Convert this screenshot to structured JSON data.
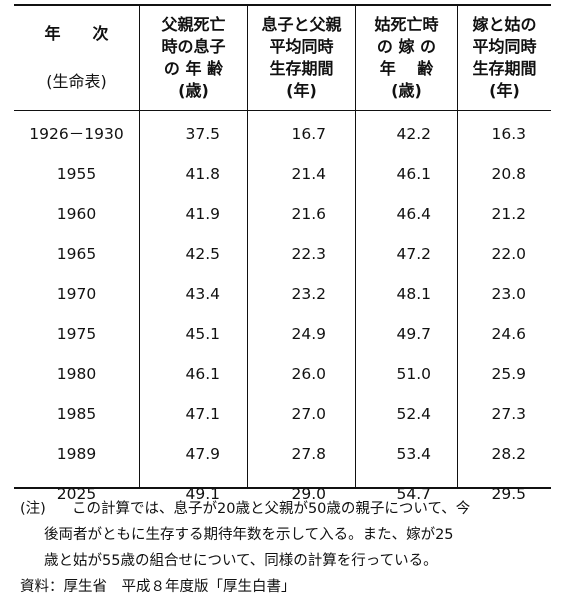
{
  "table": {
    "header": {
      "year_col": [
        "年　　次",
        "(生命表)"
      ],
      "col1": [
        "父親死亡",
        "時の息子",
        "の 年 齢",
        "(歳)"
      ],
      "col2": [
        "息子と父親",
        "平均同時",
        "生存期間",
        "(年)"
      ],
      "col3": [
        "姑死亡時",
        "の 嫁 の",
        "年　 齢",
        "(歳)"
      ],
      "col4": [
        "嫁と姑の",
        "平均同時",
        "生存期間",
        "(年)"
      ]
    },
    "rows": [
      {
        "year": "1926－1930",
        "c1": "37.5",
        "c2": "16.7",
        "c3": "42.2",
        "c4": "16.3"
      },
      {
        "year": "1955",
        "c1": "41.8",
        "c2": "21.4",
        "c3": "46.1",
        "c4": "20.8"
      },
      {
        "year": "1960",
        "c1": "41.9",
        "c2": "21.6",
        "c3": "46.4",
        "c4": "21.2"
      },
      {
        "year": "1965",
        "c1": "42.5",
        "c2": "22.3",
        "c3": "47.2",
        "c4": "22.0"
      },
      {
        "year": "1970",
        "c1": "43.4",
        "c2": "23.2",
        "c3": "48.1",
        "c4": "23.0"
      },
      {
        "year": "1975",
        "c1": "45.1",
        "c2": "24.9",
        "c3": "49.7",
        "c4": "24.6"
      },
      {
        "year": "1980",
        "c1": "46.1",
        "c2": "26.0",
        "c3": "51.0",
        "c4": "25.9"
      },
      {
        "year": "1985",
        "c1": "47.1",
        "c2": "27.0",
        "c3": "52.4",
        "c4": "27.3"
      },
      {
        "year": "1989",
        "c1": "47.9",
        "c2": "27.8",
        "c3": "53.4",
        "c4": "28.2"
      },
      {
        "year": "2025",
        "c1": "49.1",
        "c2": "29.0",
        "c3": "54.7",
        "c4": "29.5"
      }
    ]
  },
  "notes": {
    "label": "(注)",
    "lines": [
      "この計算では、息子が20歳と父親が50歳の親子について、今",
      "後両者がともに生存する期待年数を示して入る。また、嫁が25",
      "歳と姑が55歳の組合せについて、同様の計算を行っている。"
    ],
    "source": "資料：厚生省　平成８年度版「厚生白書」"
  }
}
